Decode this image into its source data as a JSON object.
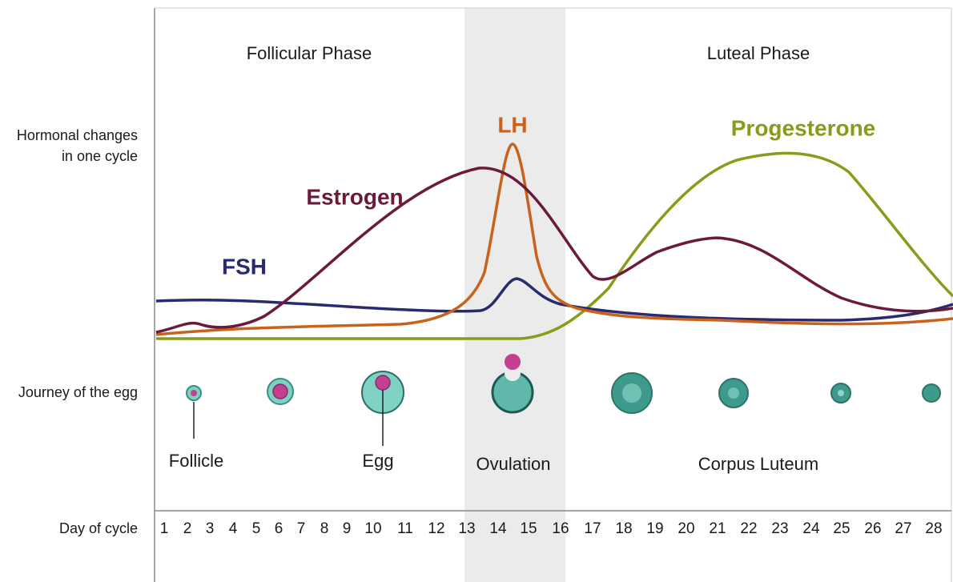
{
  "header": {
    "follicular": "Follicular Phase",
    "luteal": "Luteal Phase"
  },
  "row_labels": {
    "hormones": [
      "Hormonal changes",
      "in one cycle"
    ],
    "egg": "Journey of the egg",
    "day": "Day of cycle"
  },
  "hormones": {
    "lh": "LH",
    "estrogen": "Estrogen",
    "fsh": "FSH",
    "progesterone": "Progesterone"
  },
  "egg_labels": {
    "follicle": "Follicle",
    "egg": "Egg",
    "ovulation": "Ovulation",
    "corpus_luteum": "Corpus Luteum"
  },
  "days": [
    1,
    2,
    3,
    4,
    5,
    6,
    7,
    8,
    9,
    10,
    11,
    12,
    13,
    14,
    15,
    16,
    17,
    18,
    19,
    20,
    21,
    22,
    23,
    24,
    25,
    26,
    27,
    28
  ]
}
